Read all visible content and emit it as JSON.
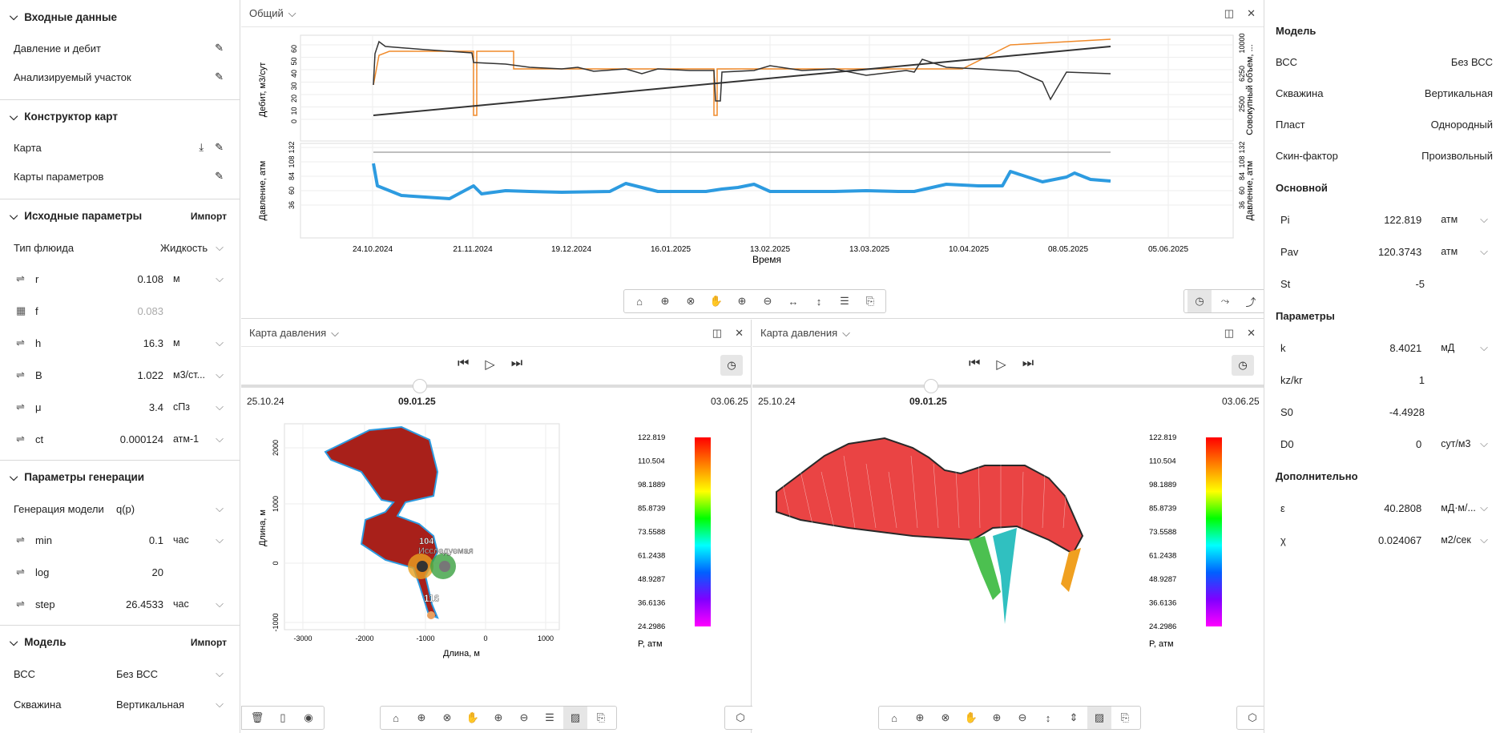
{
  "left": {
    "input": {
      "title": "Входные данные",
      "items": [
        "Давление и дебит",
        "Анализируемый участок"
      ]
    },
    "constructor": {
      "title": "Конструктор карт",
      "items": [
        "Карта",
        "Карты параметров"
      ]
    },
    "source": {
      "title": "Исходные параметры",
      "import": "Импорт",
      "fluid_label": "Тип флюида",
      "fluid_value": "Жидкость",
      "params": [
        {
          "n": "r",
          "v": "0.108",
          "u": "м"
        },
        {
          "n": "f",
          "v": "0.083",
          "u": ""
        },
        {
          "n": "h",
          "v": "16.3",
          "u": "м"
        },
        {
          "n": "B",
          "v": "1.022",
          "u": "м3/ст..."
        },
        {
          "n": "μ",
          "v": "3.4",
          "u": "сПз"
        },
        {
          "n": "ct",
          "v": "0.000124",
          "u": "атм-1"
        }
      ]
    },
    "gen": {
      "title": "Параметры генерации",
      "gen_label": "Генерация модели",
      "gen_value": "q(p)",
      "params": [
        {
          "n": "min",
          "v": "0.1",
          "u": "час"
        },
        {
          "n": "log",
          "v": "20",
          "u": ""
        },
        {
          "n": "step",
          "v": "26.4533",
          "u": "час"
        }
      ]
    },
    "model": {
      "title": "Модель",
      "import": "Импорт",
      "rows": [
        {
          "l": "ВСС",
          "v": "Без ВСС"
        },
        {
          "l": "Скважина",
          "v": "Вертикальная"
        }
      ]
    }
  },
  "top": {
    "title": "Общий",
    "y1": "Дебит, м3/сут",
    "y2": "Совокупный объем, ...",
    "y3": "Давление, атм",
    "y4": "Давление, атм",
    "xlabel": "Время",
    "yticks1": [
      "60",
      "50",
      "40",
      "30",
      "20",
      "10",
      "0"
    ],
    "yticks2": [
      "10000",
      "6250",
      "2500"
    ],
    "yticks3": [
      "132",
      "108",
      "84",
      "60",
      "36"
    ],
    "xticks": [
      "24.10.2024",
      "21.11.2024",
      "19.12.2024",
      "16.01.2025",
      "13.02.2025",
      "13.03.2025",
      "10.04.2025",
      "08.05.2025",
      "05.06.2025"
    ]
  },
  "map1": {
    "title": "Карта давления",
    "start": "25.10.24",
    "cur": "09.01.25",
    "end": "03.06.25",
    "ylabel": "Длина, м",
    "xlabel": "Длина, м",
    "xticks": [
      "-3000",
      "-2000",
      "-1000",
      "0",
      "1000"
    ],
    "yticks": [
      "2000",
      "1000",
      "0",
      "-1000"
    ],
    "well1": "104",
    "well1b": "Исследуемая",
    "well2": "116",
    "cbar_label": "P, атм"
  },
  "map2": {
    "title": "Карта давления",
    "start": "25.10.24",
    "cur": "09.01.25",
    "end": "03.06.25",
    "cbar_label": "P, атм"
  },
  "cbar": [
    "122.819",
    "110.504",
    "98.1889",
    "85.8739",
    "73.5588",
    "61.2438",
    "48.9287",
    "36.6136",
    "24.2986"
  ],
  "right": {
    "model_title": "Модель",
    "model_rows": [
      {
        "l": "ВСС",
        "v": "Без ВСС"
      },
      {
        "l": "Скважина",
        "v": "Вертикальная"
      },
      {
        "l": "Пласт",
        "v": "Однородный"
      },
      {
        "l": "Скин-фактор",
        "v": "Произвольный"
      }
    ],
    "main_title": "Основной",
    "main": [
      {
        "n": "Pi",
        "v": "122.819",
        "u": "атм"
      },
      {
        "n": "Pav",
        "v": "120.3743",
        "u": "атм"
      },
      {
        "n": "St",
        "v": "-5",
        "u": ""
      }
    ],
    "params_title": "Параметры",
    "params": [
      {
        "n": "k",
        "v": "8.4021",
        "u": "мД"
      },
      {
        "n": "kz/kr",
        "v": "1",
        "u": ""
      },
      {
        "n": "S0",
        "v": "-4.4928",
        "u": ""
      },
      {
        "n": "D0",
        "v": "0",
        "u": "сут/м3"
      }
    ],
    "extra_title": "Дополнительно",
    "extra": [
      {
        "n": "ε",
        "v": "40.2808",
        "u": "мД·м/..."
      },
      {
        "n": "χ",
        "v": "0.024067",
        "u": "м2/сек"
      }
    ]
  }
}
